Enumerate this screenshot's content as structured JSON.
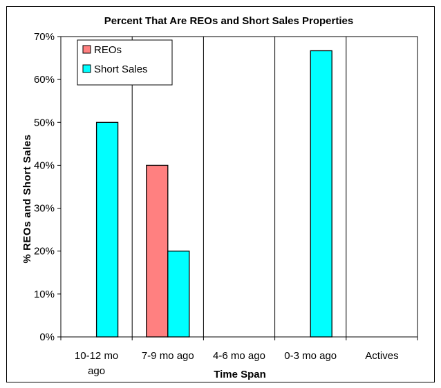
{
  "chart_data": {
    "type": "bar",
    "title": "Percent That Are REOs and Short Sales Properties",
    "xlabel": "Time Span",
    "ylabel": "% REOs and Short Sales",
    "categories": [
      [
        "10-12 mo",
        "ago"
      ],
      [
        "7-9 mo ago"
      ],
      [
        "4-6 mo ago"
      ],
      [
        "0-3 mo ago"
      ],
      [
        "Actives"
      ]
    ],
    "series": [
      {
        "name": "REOs",
        "values": [
          0,
          40,
          0,
          0,
          0
        ],
        "color": "#ff8080"
      },
      {
        "name": "Short Sales",
        "values": [
          50,
          20,
          0,
          66.7,
          0
        ],
        "color": "#00ffff"
      }
    ],
    "ylim": [
      0,
      70
    ],
    "yticks": [
      0,
      10,
      20,
      30,
      40,
      50,
      60,
      70
    ],
    "ytick_labels": [
      "0%",
      "10%",
      "20%",
      "30%",
      "40%",
      "50%",
      "60%",
      "70%"
    ],
    "grid": "vertical",
    "legend_position": "top-left"
  }
}
